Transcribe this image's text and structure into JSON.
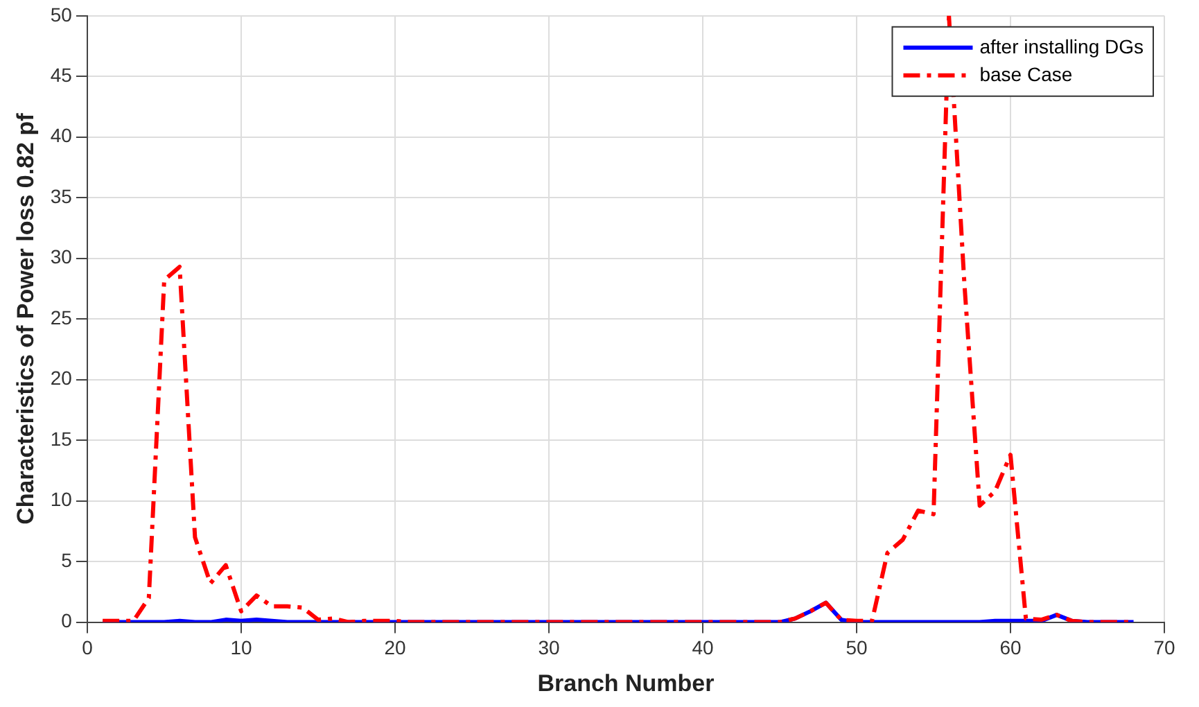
{
  "chart_data": {
    "type": "line",
    "xlabel": "Branch Number",
    "ylabel": "Characteristics of Power loss 0.82 pf",
    "x": [
      1,
      2,
      3,
      4,
      5,
      6,
      7,
      8,
      9,
      10,
      11,
      12,
      13,
      14,
      15,
      16,
      17,
      18,
      19,
      20,
      21,
      22,
      23,
      24,
      25,
      26,
      27,
      28,
      29,
      30,
      31,
      32,
      33,
      34,
      35,
      36,
      37,
      38,
      39,
      40,
      41,
      42,
      43,
      44,
      45,
      46,
      47,
      48,
      49,
      50,
      51,
      52,
      53,
      54,
      55,
      56,
      57,
      58,
      59,
      60,
      61,
      62,
      63,
      64,
      65,
      66,
      67,
      68
    ],
    "series": [
      {
        "name": "after installing DGs",
        "color": "#0000ff",
        "line_style": "solid",
        "values": [
          0,
          0,
          0,
          0,
          0,
          0.1,
          0,
          0,
          0.2,
          0.1,
          0.2,
          0.1,
          0,
          0,
          0,
          0,
          0,
          0,
          0,
          0,
          0,
          0,
          0,
          0,
          0,
          0,
          0,
          0,
          0,
          0,
          0,
          0,
          0,
          0,
          0,
          0,
          0,
          0,
          0,
          0,
          0,
          0,
          0,
          0,
          0,
          0.3,
          0.9,
          1.6,
          0.2,
          0,
          0,
          0,
          0,
          0,
          0,
          0,
          0,
          0,
          0.1,
          0.1,
          0.1,
          0.1,
          0.6,
          0.1,
          0,
          0,
          0,
          0
        ]
      },
      {
        "name": "base Case",
        "color": "#ff0000",
        "line_style": "dashdot",
        "values": [
          0.1,
          0.1,
          0.1,
          2,
          28.2,
          29.3,
          7,
          3.2,
          4.7,
          0.9,
          2.2,
          1.3,
          1.3,
          1.2,
          0.2,
          0.3,
          0,
          0.1,
          0.1,
          0.1,
          0,
          0,
          0,
          0,
          0,
          0,
          0,
          0,
          0,
          0,
          0,
          0,
          0,
          0,
          0,
          0,
          0,
          0,
          0,
          0,
          0,
          0,
          0,
          0,
          0,
          0.3,
          0.9,
          1.6,
          0.2,
          0.1,
          0.1,
          5.7,
          6.8,
          9.2,
          8.9,
          50,
          28,
          9.6,
          10.8,
          13.8,
          0.3,
          0.2,
          0.6,
          0.1,
          0,
          0,
          0,
          0
        ]
      }
    ],
    "xlim": [
      0,
      70
    ],
    "xticks": [
      0,
      10,
      20,
      30,
      40,
      50,
      60,
      70
    ],
    "ylim": [
      0,
      50
    ],
    "yticks": [
      0,
      5,
      10,
      15,
      20,
      25,
      30,
      35,
      40,
      45,
      50
    ],
    "grid": true,
    "legend": "top right",
    "marker": "none"
  }
}
